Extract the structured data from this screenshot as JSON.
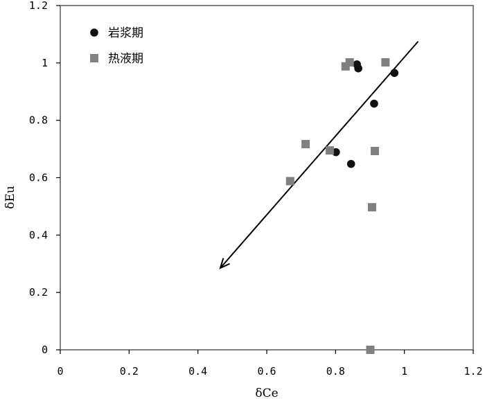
{
  "chart_data": {
    "type": "scatter",
    "xlabel": "δCe",
    "ylabel": "δEu",
    "xlim": [
      0,
      1.2
    ],
    "ylim": [
      0,
      1.2
    ],
    "x_ticks": [
      "0",
      "0.2",
      "0.4",
      "0.6",
      "0.8",
      "1",
      "1.2"
    ],
    "y_ticks": [
      "0",
      "0.2",
      "0.4",
      "0.6",
      "0.8",
      "1",
      "1.2"
    ],
    "grid": false,
    "legend_position": "top-left",
    "series": [
      {
        "name": "岩浆期",
        "marker": "circle",
        "color": "#111111",
        "points": [
          [
            0.862,
            0.995
          ],
          [
            0.866,
            0.981
          ],
          [
            0.971,
            0.965
          ],
          [
            0.912,
            0.858
          ],
          [
            0.801,
            0.689
          ],
          [
            0.845,
            0.648
          ]
        ]
      },
      {
        "name": "热液期",
        "marker": "square",
        "color": "#808080",
        "points": [
          [
            0.829,
            0.988
          ],
          [
            0.841,
            1.002
          ],
          [
            0.945,
            1.002
          ],
          [
            0.713,
            0.717
          ],
          [
            0.783,
            0.695
          ],
          [
            0.914,
            0.693
          ],
          [
            0.668,
            0.588
          ],
          [
            0.906,
            0.497
          ],
          [
            0.901,
            0.0
          ]
        ]
      }
    ],
    "arrow": {
      "from": [
        1.04,
        1.075
      ],
      "to": [
        0.465,
        0.285
      ],
      "color": "#000000"
    }
  }
}
